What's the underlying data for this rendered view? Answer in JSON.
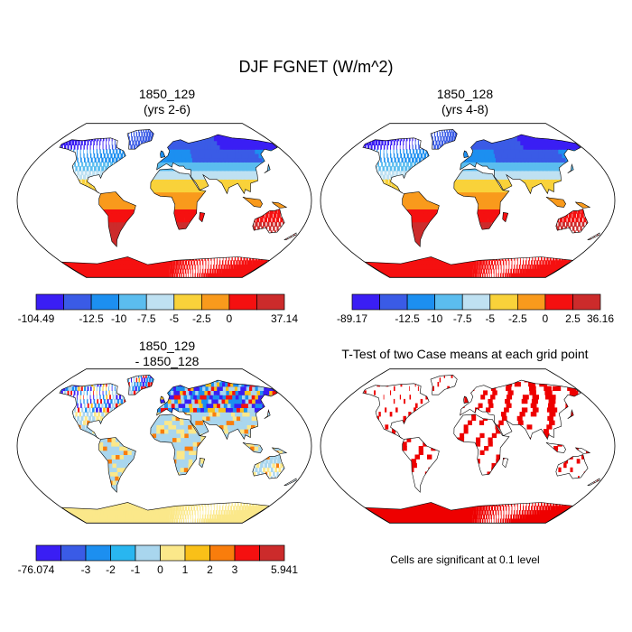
{
  "figure_title": "DJF FGNET (W/m^2)",
  "chart_data": [
    {
      "type": "heatmap",
      "projection": "robinson",
      "title_line1": "1850_129",
      "title_line2": "(yrs 2-6)",
      "colorbar": {
        "colors": [
          "#3a1ef4",
          "#3a5be6",
          "#1c8ff0",
          "#5bbdef",
          "#bfe1f2",
          "#f9d23a",
          "#f99a1c",
          "#f51010",
          "#cc2b2b"
        ],
        "labels": [
          "-104.49",
          "-12.5",
          "-10",
          "-7.5",
          "-5",
          "-2.5",
          "0",
          "37.14"
        ],
        "label_boundaries": [
          0,
          2,
          3,
          4,
          5,
          6,
          7,
          9
        ]
      }
    },
    {
      "type": "heatmap",
      "projection": "robinson",
      "title_line1": "1850_128",
      "title_line2": "(yrs 4-8)",
      "colorbar": {
        "colors": [
          "#3a1ef4",
          "#3a5be6",
          "#1c8ff0",
          "#5bbdef",
          "#bfe1f2",
          "#f9d23a",
          "#f99a1c",
          "#f51010",
          "#cc2b2b"
        ],
        "labels": [
          "-89.17",
          "-12.5",
          "-10",
          "-7.5",
          "-5",
          "-2.5",
          "0",
          "2.5",
          "36.16"
        ],
        "label_boundaries": [
          0,
          2,
          3,
          4,
          5,
          6,
          7,
          8,
          9
        ]
      }
    },
    {
      "type": "heatmap",
      "projection": "robinson",
      "title_line1": "1850_129",
      "title_line2": "- 1850_128",
      "colorbar": {
        "colors": [
          "#3a1ef4",
          "#3a5be6",
          "#1c8ff0",
          "#29b6f0",
          "#a9d6ee",
          "#fbe88a",
          "#f9c018",
          "#f97d0c",
          "#f51010",
          "#cc2b2b"
        ],
        "labels": [
          "-76.074",
          "-3",
          "-2",
          "-1",
          "0",
          "1",
          "2",
          "3",
          "5.941"
        ],
        "label_boundaries": [
          0,
          2,
          3,
          4,
          5,
          6,
          7,
          8,
          10
        ]
      }
    },
    {
      "type": "heatmap",
      "projection": "robinson",
      "title_line1": "T-Test of two Case means at each grid point",
      "note": "Cells are significant at 0.1 level",
      "significance_level": 0.1,
      "colors": {
        "significant": "#ee0000"
      }
    }
  ]
}
